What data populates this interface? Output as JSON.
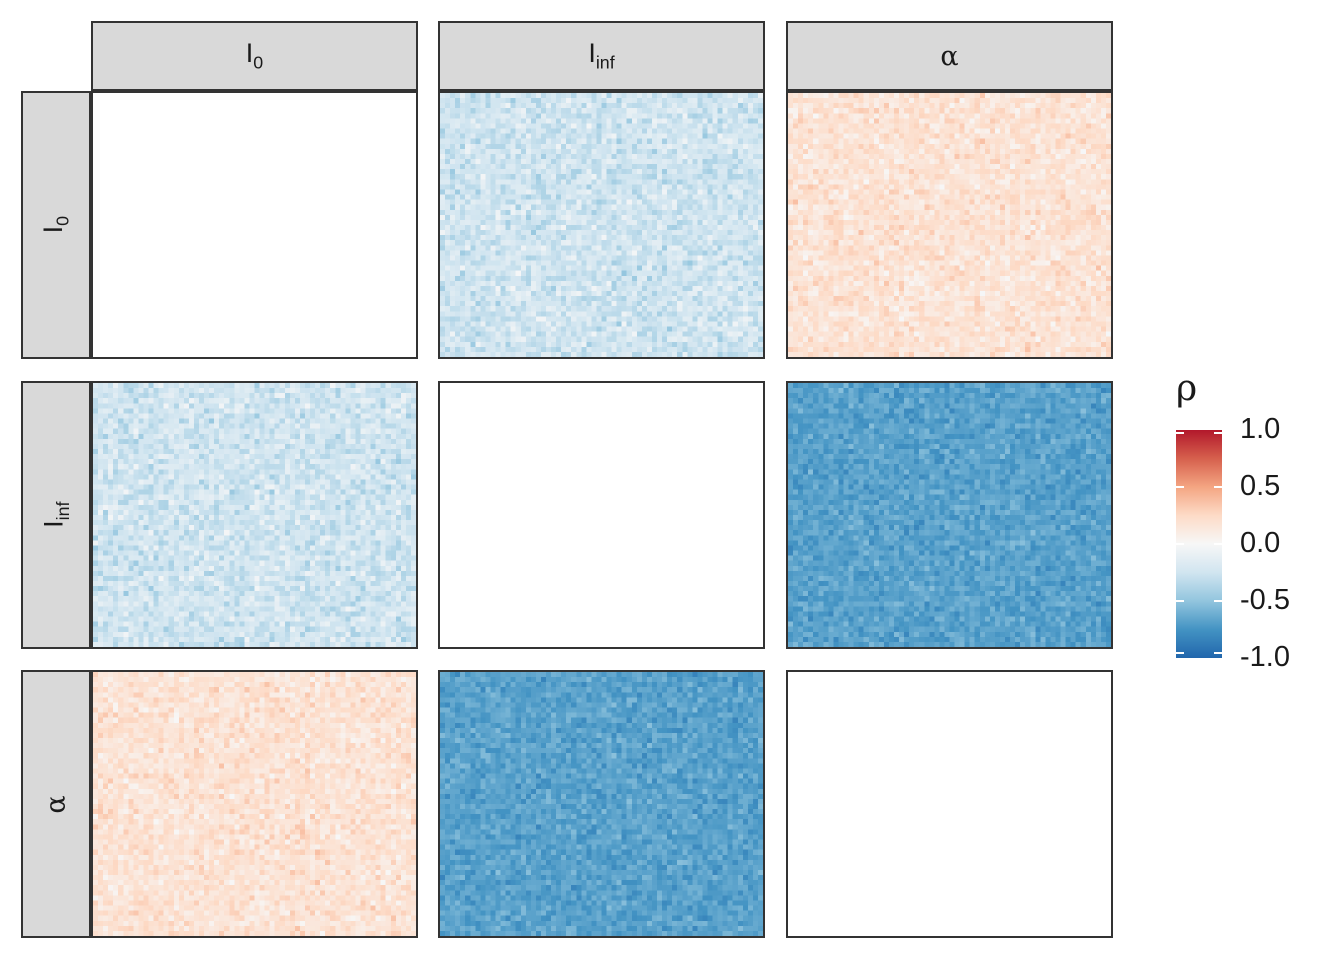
{
  "chart_data": {
    "type": "heatmap",
    "layout": "facet-grid",
    "parameters": [
      {
        "id": "I0",
        "base": "I",
        "sub": "0",
        "greek": false
      },
      {
        "id": "Iinf",
        "base": "I",
        "sub": "inf",
        "greek": false
      },
      {
        "id": "alpha",
        "base": "α",
        "sub": "",
        "greek": true
      }
    ],
    "columns": [
      "I0",
      "Iinf",
      "alpha"
    ],
    "rows": [
      "I0",
      "Iinf",
      "alpha"
    ],
    "grid_size": [
      64,
      52
    ],
    "panels": [
      {
        "row": "I0",
        "col": "I0",
        "filled": false
      },
      {
        "row": "I0",
        "col": "Iinf",
        "filled": true,
        "mean_rho": -0.25,
        "spread": 0.12
      },
      {
        "row": "I0",
        "col": "alpha",
        "filled": true,
        "mean_rho": 0.18,
        "spread": 0.1
      },
      {
        "row": "Iinf",
        "col": "I0",
        "filled": true,
        "mean_rho": -0.25,
        "spread": 0.12
      },
      {
        "row": "Iinf",
        "col": "Iinf",
        "filled": false
      },
      {
        "row": "Iinf",
        "col": "alpha",
        "filled": true,
        "mean_rho": -0.68,
        "spread": 0.08
      },
      {
        "row": "alpha",
        "col": "I0",
        "filled": true,
        "mean_rho": 0.18,
        "spread": 0.1
      },
      {
        "row": "alpha",
        "col": "Iinf",
        "filled": true,
        "mean_rho": -0.68,
        "spread": 0.08
      },
      {
        "row": "alpha",
        "col": "alpha",
        "filled": false
      }
    ],
    "legend": {
      "title": "ρ",
      "placement": "right",
      "range": [
        -1.0,
        1.0
      ],
      "ticks": [
        {
          "value": 1.0,
          "label": "1.0"
        },
        {
          "value": 0.5,
          "label": "0.5"
        },
        {
          "value": 0.0,
          "label": "0.0"
        },
        {
          "value": -0.5,
          "label": "-0.5"
        },
        {
          "value": -1.0,
          "label": "-1.0"
        }
      ]
    },
    "colors": {
      "low": "#2166ac",
      "mid": "#f7f7f7",
      "high": "#b2182b",
      "palette": [
        "#2166ac",
        "#4393c3",
        "#92c5de",
        "#d1e5f0",
        "#f7f7f7",
        "#fddbc7",
        "#f4a582",
        "#d6604d",
        "#b2182b"
      ]
    }
  }
}
